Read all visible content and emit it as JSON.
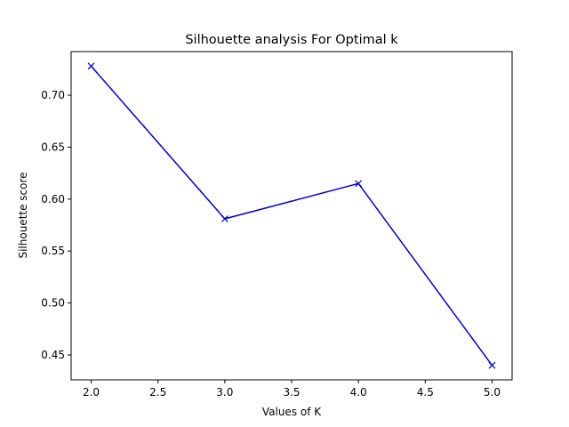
{
  "chart_data": {
    "type": "line",
    "title": "Silhouette analysis For Optimal k",
    "xlabel": "Values of K",
    "ylabel": "Silhouette score",
    "xlim": [
      1.85,
      5.15
    ],
    "ylim": [
      0.426,
      0.742
    ],
    "xticks": [
      2.0,
      2.5,
      3.0,
      3.5,
      4.0,
      4.5,
      5.0
    ],
    "xtick_labels": [
      "2.0",
      "2.5",
      "3.0",
      "3.5",
      "4.0",
      "4.5",
      "5.0"
    ],
    "yticks": [
      0.45,
      0.5,
      0.55,
      0.6,
      0.65,
      0.7
    ],
    "ytick_labels": [
      "0.45",
      "0.50",
      "0.55",
      "0.60",
      "0.65",
      "0.70"
    ],
    "grid": false,
    "series": [
      {
        "x": [
          2,
          3,
          4,
          5
        ],
        "y": [
          0.728,
          0.581,
          0.615,
          0.44
        ],
        "color": "#0000cc",
        "marker": "x"
      }
    ]
  }
}
